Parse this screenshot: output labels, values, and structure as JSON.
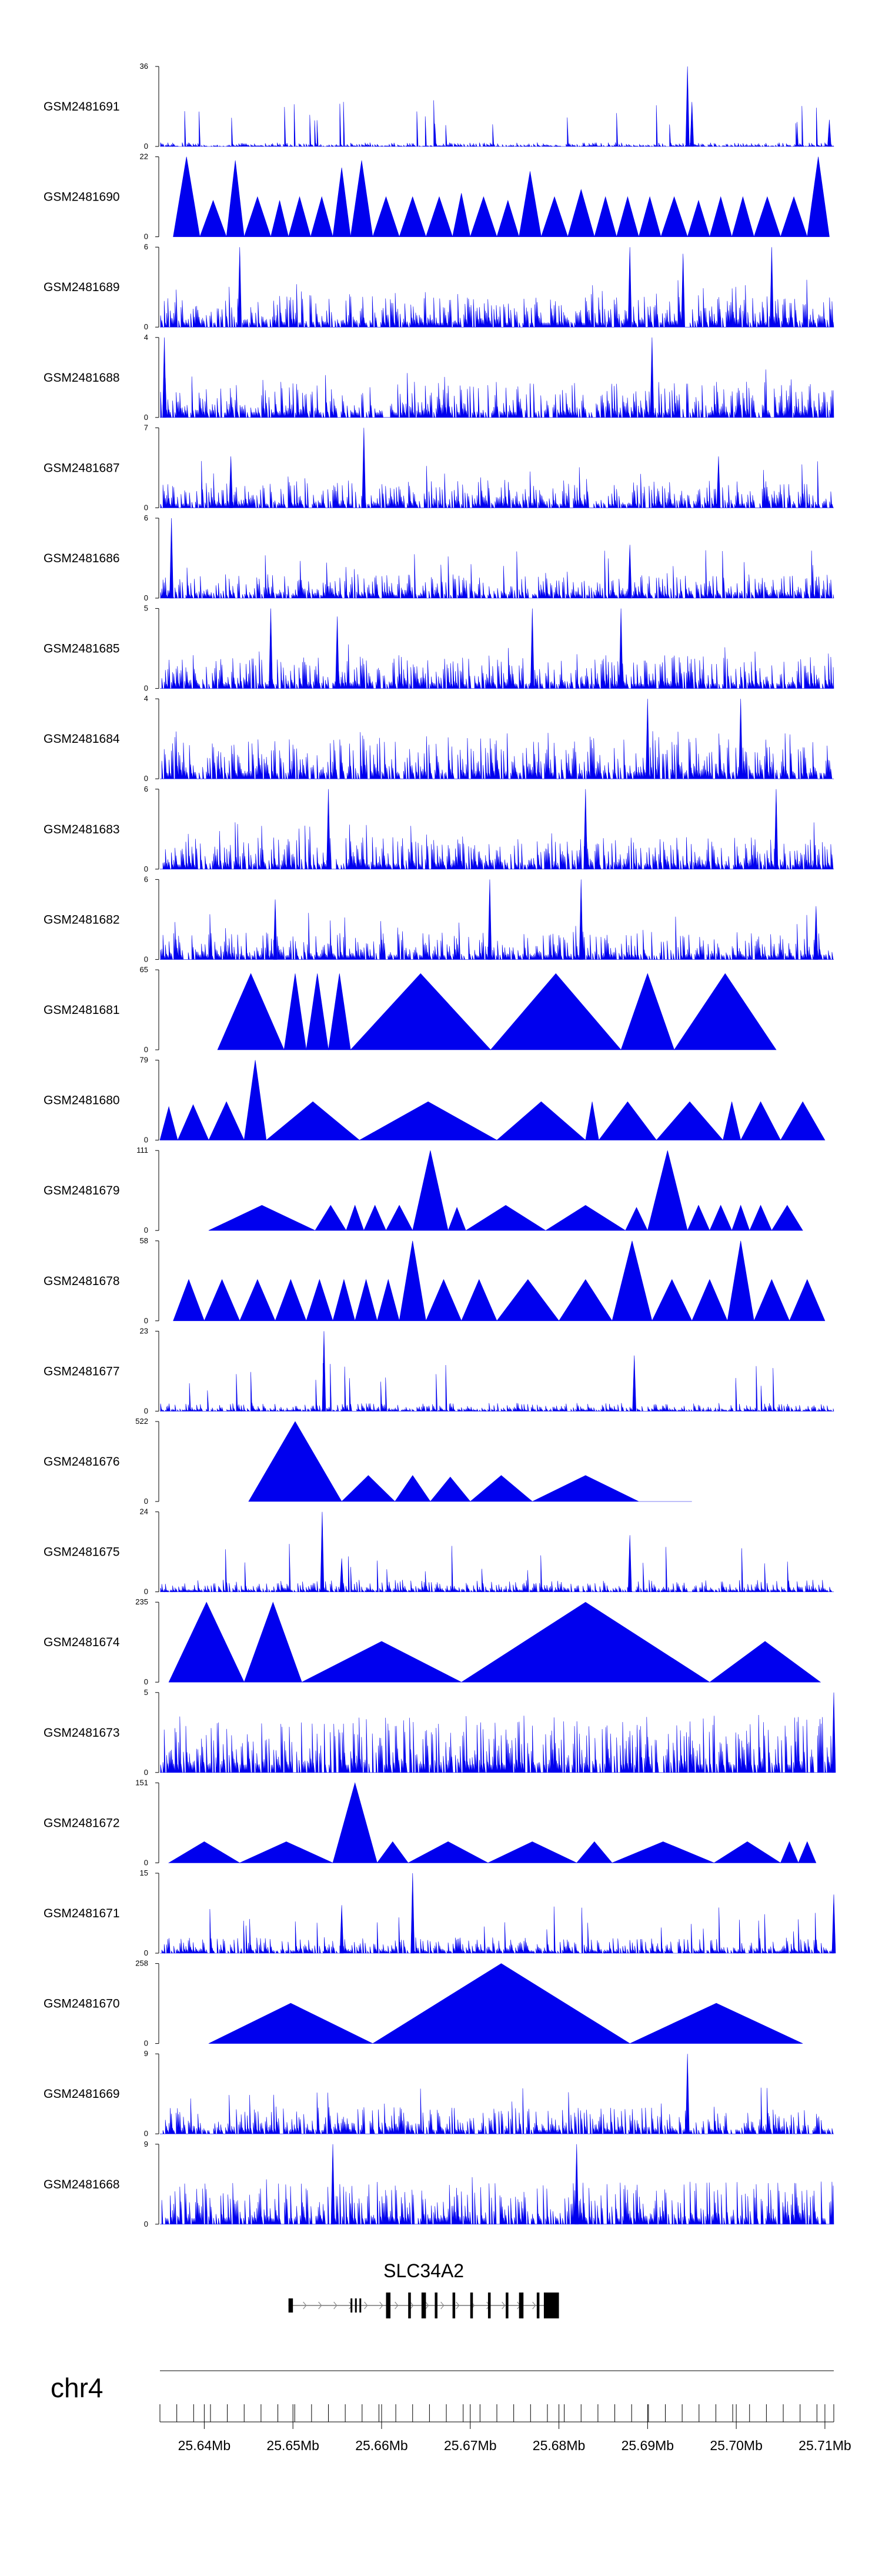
{
  "chart_data": {
    "type": "area",
    "title": "",
    "description_free": true,
    "chromosome": "chr4",
    "xlim": [
      25.635,
      25.711
    ],
    "xunit": "Mb",
    "x_ticks": [
      25.64,
      25.65,
      25.66,
      25.67,
      25.68,
      25.69,
      25.7,
      25.71
    ],
    "x_tick_labels": [
      "25.64Mb",
      "25.65Mb",
      "25.66Mb",
      "25.67Mb",
      "25.68Mb",
      "25.69Mb",
      "25.70Mb",
      "25.71Mb"
    ],
    "grid": false,
    "tracks": [
      {
        "name": "GSM2481691",
        "ymax_label": "36",
        "ymin_label": "0",
        "ymax": 36,
        "profile": "dense",
        "baseline": 0.6,
        "spikes": [
          [
            25.6945,
            36
          ],
          [
            25.695,
            20
          ],
          [
            25.7105,
            12
          ]
        ],
        "segments": []
      },
      {
        "name": "GSM2481690",
        "ymax_label": "22",
        "ymin_label": "0",
        "ymax": 22,
        "profile": "triangles",
        "baseline": 0,
        "spikes": [],
        "segments": [
          [
            25.6365,
            25.6395,
            22
          ],
          [
            25.6395,
            25.6425,
            10
          ],
          [
            25.6425,
            25.6445,
            21
          ],
          [
            25.6445,
            25.6475,
            11
          ],
          [
            25.6475,
            25.6495,
            10
          ],
          [
            25.6495,
            25.652,
            11
          ],
          [
            25.652,
            25.6545,
            11
          ],
          [
            25.6545,
            25.6565,
            19
          ],
          [
            25.6565,
            25.659,
            21
          ],
          [
            25.659,
            25.662,
            11
          ],
          [
            25.662,
            25.665,
            11
          ],
          [
            25.665,
            25.668,
            11
          ],
          [
            25.668,
            25.67,
            12
          ],
          [
            25.67,
            25.673,
            11
          ],
          [
            25.673,
            25.6755,
            10
          ],
          [
            25.6755,
            25.678,
            18
          ],
          [
            25.678,
            25.681,
            11
          ],
          [
            25.681,
            25.684,
            13
          ],
          [
            25.684,
            25.6865,
            11
          ],
          [
            25.6865,
            25.689,
            11
          ],
          [
            25.689,
            25.6915,
            11
          ],
          [
            25.6915,
            25.6945,
            11
          ],
          [
            25.6945,
            25.697,
            10
          ],
          [
            25.697,
            25.6995,
            11
          ],
          [
            25.6995,
            25.702,
            11
          ],
          [
            25.702,
            25.705,
            11
          ],
          [
            25.705,
            25.708,
            11
          ],
          [
            25.708,
            25.7105,
            22
          ]
        ]
      },
      {
        "name": "GSM2481689",
        "ymax_label": "6",
        "ymin_label": "0",
        "ymax": 6,
        "profile": "dense",
        "baseline": 0.8,
        "spikes": [
          [
            25.644,
            6
          ],
          [
            25.688,
            6
          ],
          [
            25.694,
            5.5
          ],
          [
            25.704,
            6
          ]
        ],
        "segments": []
      },
      {
        "name": "GSM2481688",
        "ymax_label": "4",
        "ymin_label": "0",
        "ymax": 4,
        "profile": "dense",
        "baseline": 0.6,
        "spikes": [
          [
            25.6355,
            4
          ],
          [
            25.6905,
            4
          ]
        ],
        "segments": []
      },
      {
        "name": "GSM2481687",
        "ymax_label": "7",
        "ymin_label": "0",
        "ymax": 7,
        "profile": "dense",
        "baseline": 0.8,
        "spikes": [
          [
            25.658,
            7
          ],
          [
            25.643,
            4.5
          ],
          [
            25.698,
            4.5
          ]
        ],
        "segments": []
      },
      {
        "name": "GSM2481686",
        "ymax_label": "6",
        "ymin_label": "0",
        "ymax": 6,
        "profile": "dense",
        "baseline": 0.6,
        "spikes": [
          [
            25.6363,
            6
          ],
          [
            25.688,
            4
          ]
        ],
        "segments": []
      },
      {
        "name": "GSM2481685",
        "ymax_label": "5",
        "ymin_label": "0",
        "ymax": 5,
        "profile": "dense",
        "baseline": 0.7,
        "spikes": [
          [
            25.6475,
            5
          ],
          [
            25.655,
            4.5
          ],
          [
            25.677,
            5
          ],
          [
            25.687,
            5
          ]
        ],
        "segments": []
      },
      {
        "name": "GSM2481684",
        "ymax_label": "4",
        "ymin_label": "0",
        "ymax": 4,
        "profile": "dense",
        "baseline": 0.7,
        "spikes": [
          [
            25.69,
            4
          ],
          [
            25.7005,
            4
          ]
        ],
        "segments": []
      },
      {
        "name": "GSM2481683",
        "ymax_label": "6",
        "ymin_label": "0",
        "ymax": 6,
        "profile": "dense",
        "baseline": 0.8,
        "spikes": [
          [
            25.654,
            6
          ],
          [
            25.683,
            6
          ],
          [
            25.7045,
            6
          ]
        ],
        "segments": []
      },
      {
        "name": "GSM2481682",
        "ymax_label": "6",
        "ymin_label": "0",
        "ymax": 6,
        "profile": "dense",
        "baseline": 0.7,
        "spikes": [
          [
            25.6722,
            6
          ],
          [
            25.6825,
            6
          ],
          [
            25.648,
            4.5
          ],
          [
            25.709,
            4
          ]
        ],
        "segments": []
      },
      {
        "name": "GSM2481681",
        "ymax_label": "65",
        "ymin_label": "0",
        "ymax": 65,
        "profile": "triangles",
        "baseline": 0,
        "spikes": [],
        "segments": [
          [
            25.6415,
            25.649,
            62
          ],
          [
            25.649,
            25.6515,
            62
          ],
          [
            25.6515,
            25.654,
            62
          ],
          [
            25.654,
            25.6565,
            62
          ],
          [
            25.6565,
            25.6723,
            62
          ],
          [
            25.6723,
            25.687,
            62
          ],
          [
            25.687,
            25.693,
            62
          ],
          [
            25.693,
            25.7045,
            62
          ]
        ]
      },
      {
        "name": "GSM2481680",
        "ymax_label": "79",
        "ymin_label": "0",
        "ymax": 79,
        "profile": "triangles",
        "baseline": 0,
        "spikes": [],
        "segments": [
          [
            25.635,
            25.637,
            33
          ],
          [
            25.637,
            25.6405,
            35
          ],
          [
            25.6405,
            25.6445,
            38
          ],
          [
            25.6445,
            25.647,
            79
          ],
          [
            25.647,
            25.6575,
            38
          ],
          [
            25.6575,
            25.673,
            38
          ],
          [
            25.673,
            25.683,
            38
          ],
          [
            25.683,
            25.6845,
            38
          ],
          [
            25.6845,
            25.691,
            38
          ],
          [
            25.691,
            25.6985,
            38
          ],
          [
            25.6985,
            25.7005,
            38
          ],
          [
            25.7005,
            25.705,
            38
          ],
          [
            25.705,
            25.71,
            38
          ]
        ]
      },
      {
        "name": "GSM2481679",
        "ymax_label": "111",
        "ymin_label": "0",
        "ymax": 111,
        "profile": "triangles",
        "baseline": 0,
        "spikes": [],
        "segments": [
          [
            25.6405,
            25.6525,
            35
          ],
          [
            25.6525,
            25.656,
            35
          ],
          [
            25.656,
            25.658,
            35
          ],
          [
            25.658,
            25.6605,
            35
          ],
          [
            25.6605,
            25.6635,
            35
          ],
          [
            25.6635,
            25.6675,
            111
          ],
          [
            25.6675,
            25.6695,
            32
          ],
          [
            25.6695,
            25.6785,
            35
          ],
          [
            25.6785,
            25.6875,
            35
          ],
          [
            25.6875,
            25.69,
            32
          ],
          [
            25.69,
            25.6945,
            111
          ],
          [
            25.6945,
            25.697,
            35
          ],
          [
            25.697,
            25.6995,
            35
          ],
          [
            25.6995,
            25.7015,
            35
          ],
          [
            25.7015,
            25.704,
            35
          ],
          [
            25.704,
            25.7075,
            35
          ]
        ]
      },
      {
        "name": "GSM2481678",
        "ymax_label": "58",
        "ymin_label": "0",
        "ymax": 58,
        "profile": "triangles",
        "baseline": 0,
        "spikes": [],
        "segments": [
          [
            25.6365,
            25.64,
            30
          ],
          [
            25.64,
            25.644,
            30
          ],
          [
            25.644,
            25.648,
            30
          ],
          [
            25.648,
            25.6515,
            30
          ],
          [
            25.6515,
            25.6545,
            30
          ],
          [
            25.6545,
            25.657,
            30
          ],
          [
            25.657,
            25.6595,
            30
          ],
          [
            25.6595,
            25.662,
            30
          ],
          [
            25.662,
            25.665,
            58
          ],
          [
            25.665,
            25.669,
            30
          ],
          [
            25.669,
            25.673,
            30
          ],
          [
            25.673,
            25.68,
            30
          ],
          [
            25.68,
            25.686,
            30
          ],
          [
            25.686,
            25.6905,
            58
          ],
          [
            25.6905,
            25.695,
            30
          ],
          [
            25.695,
            25.699,
            30
          ],
          [
            25.699,
            25.702,
            58
          ],
          [
            25.702,
            25.706,
            30
          ],
          [
            25.706,
            25.71,
            30
          ]
        ]
      },
      {
        "name": "GSM2481677",
        "ymax_label": "23",
        "ymin_label": "0",
        "ymax": 23,
        "profile": "dense",
        "baseline": 0.8,
        "spikes": [
          [
            25.6535,
            23
          ],
          [
            25.6885,
            16
          ]
        ],
        "segments": []
      },
      {
        "name": "GSM2481676",
        "ymax_label": "522",
        "ymin_label": "0",
        "ymax": 522,
        "profile": "triangles",
        "baseline": 0,
        "spikes": [],
        "segments": [
          [
            25.645,
            25.6555,
            522
          ],
          [
            25.6555,
            25.6615,
            170
          ],
          [
            25.6615,
            25.6655,
            170
          ],
          [
            25.6655,
            25.67,
            160
          ],
          [
            25.67,
            25.677,
            170
          ],
          [
            25.677,
            25.689,
            170
          ],
          [
            25.689,
            25.695,
            0
          ]
        ]
      },
      {
        "name": "GSM2481675",
        "ymax_label": "24",
        "ymin_label": "0",
        "ymax": 24,
        "profile": "dense",
        "baseline": 1.2,
        "spikes": [
          [
            25.6533,
            24
          ],
          [
            25.688,
            17
          ],
          [
            25.6555,
            10
          ]
        ],
        "segments": []
      },
      {
        "name": "GSM2481674",
        "ymax_label": "235",
        "ymin_label": "0",
        "ymax": 235,
        "profile": "triangles",
        "baseline": 0,
        "spikes": [],
        "segments": [
          [
            25.636,
            25.6445,
            235
          ],
          [
            25.6445,
            25.651,
            235
          ],
          [
            25.651,
            25.669,
            120
          ],
          [
            25.669,
            25.697,
            235
          ],
          [
            25.697,
            25.7095,
            120
          ]
        ]
      },
      {
        "name": "GSM2481673",
        "ymax_label": "5",
        "ymin_label": "0",
        "ymax": 5,
        "profile": "dense",
        "baseline": 1.2,
        "spikes": [
          [
            25.711,
            5
          ]
        ],
        "segments": []
      },
      {
        "name": "GSM2481672",
        "ymax_label": "151",
        "ymin_label": "0",
        "ymax": 151,
        "profile": "triangles",
        "baseline": 0,
        "spikes": [],
        "segments": [
          [
            25.636,
            25.644,
            40
          ],
          [
            25.644,
            25.6545,
            40
          ],
          [
            25.6545,
            25.6595,
            151
          ],
          [
            25.6595,
            25.663,
            40
          ],
          [
            25.663,
            25.672,
            40
          ],
          [
            25.672,
            25.682,
            40
          ],
          [
            25.682,
            25.686,
            40
          ],
          [
            25.686,
            25.6975,
            40
          ],
          [
            25.6975,
            25.705,
            40
          ],
          [
            25.705,
            25.707,
            40
          ],
          [
            25.707,
            25.709,
            40
          ]
        ]
      },
      {
        "name": "GSM2481671",
        "ymax_label": "15",
        "ymin_label": "0",
        "ymax": 15,
        "profile": "dense",
        "baseline": 1.0,
        "spikes": [
          [
            25.6635,
            15
          ],
          [
            25.6555,
            9
          ],
          [
            25.711,
            11
          ]
        ],
        "segments": []
      },
      {
        "name": "GSM2481670",
        "ymax_label": "258",
        "ymin_label": "0",
        "ymax": 258,
        "profile": "triangles",
        "baseline": 0,
        "spikes": [],
        "segments": [
          [
            25.6405,
            25.659,
            130
          ],
          [
            25.659,
            25.688,
            258
          ],
          [
            25.688,
            25.7075,
            130
          ]
        ]
      },
      {
        "name": "GSM2481669",
        "ymax_label": "9",
        "ymin_label": "0",
        "ymax": 9,
        "profile": "dense",
        "baseline": 1.0,
        "spikes": [
          [
            25.6945,
            9
          ]
        ],
        "segments": []
      },
      {
        "name": "GSM2481668",
        "ymax_label": "9",
        "ymin_label": "0",
        "ymax": 9,
        "profile": "dense",
        "baseline": 1.6,
        "spikes": [
          [
            25.6545,
            9
          ],
          [
            25.682,
            9
          ]
        ],
        "segments": []
      }
    ],
    "gene": {
      "name": "SLC34A2",
      "strand": "+",
      "start": 25.6495,
      "end": 25.68,
      "exons": [
        [
          25.6495,
          25.65
        ],
        [
          25.6565,
          25.6567
        ],
        [
          25.657,
          25.6572
        ],
        [
          25.6575,
          25.6577
        ],
        [
          25.6605,
          25.661
        ],
        [
          25.663,
          25.6633
        ],
        [
          25.6645,
          25.665
        ],
        [
          25.666,
          25.6663
        ],
        [
          25.668,
          25.6683
        ],
        [
          25.67,
          25.6703
        ],
        [
          25.672,
          25.6723
        ],
        [
          25.674,
          25.6743
        ],
        [
          25.6755,
          25.676
        ],
        [
          25.6775,
          25.6778
        ],
        [
          25.6783,
          25.68
        ]
      ],
      "thick_start": 25.6605,
      "thick_end": 25.68
    }
  }
}
